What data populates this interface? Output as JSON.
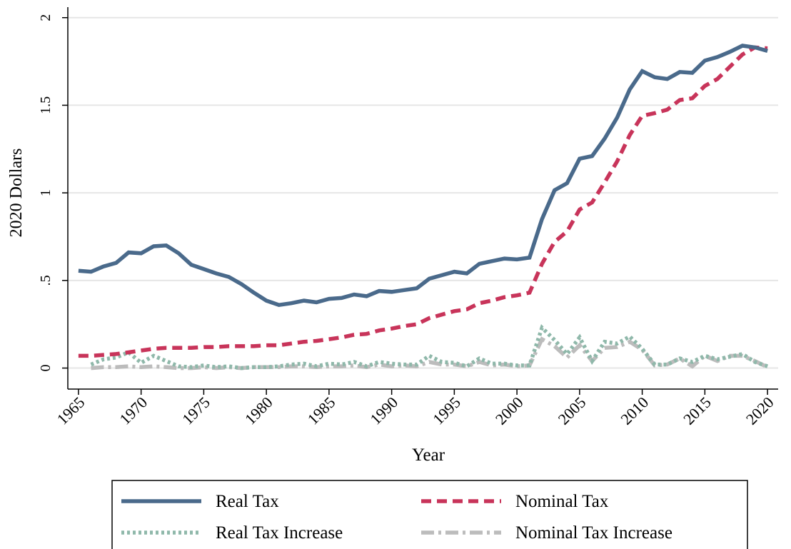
{
  "chart_data": {
    "type": "line",
    "x_label": "Year",
    "y_label": "2020 Dollars",
    "x": [
      1965,
      1966,
      1967,
      1968,
      1969,
      1970,
      1971,
      1972,
      1973,
      1974,
      1975,
      1976,
      1977,
      1978,
      1979,
      1980,
      1981,
      1982,
      1983,
      1984,
      1985,
      1986,
      1987,
      1988,
      1989,
      1990,
      1991,
      1992,
      1993,
      1994,
      1995,
      1996,
      1997,
      1998,
      1999,
      2000,
      2001,
      2002,
      2003,
      2004,
      2005,
      2006,
      2007,
      2008,
      2009,
      2010,
      2011,
      2012,
      2013,
      2014,
      2015,
      2016,
      2017,
      2018,
      2019,
      2020
    ],
    "series": [
      {
        "name": "Real Tax",
        "color": "#4a6a8b",
        "line_style": "solid",
        "values": [
          0.555,
          0.55,
          0.58,
          0.6,
          0.66,
          0.655,
          0.695,
          0.7,
          0.655,
          0.59,
          0.565,
          0.54,
          0.52,
          0.48,
          0.43,
          0.385,
          0.36,
          0.37,
          0.385,
          0.375,
          0.395,
          0.4,
          0.42,
          0.41,
          0.44,
          0.435,
          0.445,
          0.455,
          0.51,
          0.53,
          0.55,
          0.54,
          0.595,
          0.61,
          0.625,
          0.62,
          0.63,
          0.85,
          1.015,
          1.055,
          1.195,
          1.21,
          1.31,
          1.43,
          1.59,
          1.695,
          1.66,
          1.65,
          1.69,
          1.685,
          1.755,
          1.775,
          1.805,
          1.84,
          1.83,
          1.81
        ]
      },
      {
        "name": "Nominal Tax",
        "color": "#c8345a",
        "line_style": "dashed",
        "values": [
          0.07,
          0.07,
          0.075,
          0.08,
          0.09,
          0.1,
          0.11,
          0.115,
          0.115,
          0.115,
          0.12,
          0.12,
          0.125,
          0.125,
          0.125,
          0.13,
          0.13,
          0.14,
          0.15,
          0.155,
          0.165,
          0.175,
          0.19,
          0.195,
          0.215,
          0.225,
          0.24,
          0.25,
          0.285,
          0.305,
          0.325,
          0.335,
          0.37,
          0.385,
          0.405,
          0.415,
          0.43,
          0.595,
          0.72,
          0.78,
          0.905,
          0.945,
          1.06,
          1.18,
          1.33,
          1.44,
          1.455,
          1.475,
          1.53,
          1.54,
          1.61,
          1.65,
          1.72,
          1.79,
          1.83,
          1.825
        ]
      },
      {
        "name": "Real Tax Increase",
        "color": "#8fb8aa",
        "line_style": "dotted",
        "values": [
          null,
          0.02,
          0.05,
          0.06,
          0.09,
          0.03,
          0.07,
          0.04,
          0.01,
          0.005,
          0.015,
          0.005,
          0.01,
          0.0,
          0.005,
          0.005,
          0.01,
          0.02,
          0.025,
          0.01,
          0.025,
          0.02,
          0.035,
          0.01,
          0.035,
          0.025,
          0.02,
          0.02,
          0.07,
          0.035,
          0.03,
          0.01,
          0.055,
          0.025,
          0.025,
          0.015,
          0.015,
          0.23,
          0.16,
          0.08,
          0.175,
          0.04,
          0.15,
          0.14,
          0.18,
          0.11,
          0.02,
          0.02,
          0.055,
          0.035,
          0.07,
          0.05,
          0.065,
          0.08,
          0.035,
          0.01
        ]
      },
      {
        "name": "Nominal Tax Increase",
        "color": "#bcbcbc",
        "line_style": "dashdot",
        "values": [
          null,
          0.0,
          0.005,
          0.005,
          0.01,
          0.005,
          0.01,
          0.005,
          0.0,
          0.0,
          0.005,
          0.0,
          0.005,
          0.0,
          0.005,
          0.005,
          0.005,
          0.01,
          0.01,
          0.005,
          0.01,
          0.01,
          0.015,
          0.005,
          0.02,
          0.01,
          0.015,
          0.01,
          0.035,
          0.02,
          0.02,
          0.01,
          0.035,
          0.015,
          0.02,
          0.01,
          0.015,
          0.165,
          0.125,
          0.06,
          0.13,
          0.04,
          0.115,
          0.12,
          0.15,
          0.105,
          0.015,
          0.02,
          0.055,
          0.01,
          0.07,
          0.04,
          0.07,
          0.07,
          0.04,
          0.005
        ]
      }
    ],
    "xlim": [
      1964.15,
      2020.85
    ],
    "xticks": [
      1965,
      1970,
      1975,
      1980,
      1985,
      1990,
      1995,
      2000,
      2005,
      2010,
      2015,
      2020
    ],
    "ylim": [
      -0.12,
      2.06
    ],
    "yticks": [
      0,
      {
        "value": 0.5,
        "label": ".5"
      },
      1,
      1.5,
      2
    ],
    "grid": true,
    "legend": "bottom"
  }
}
